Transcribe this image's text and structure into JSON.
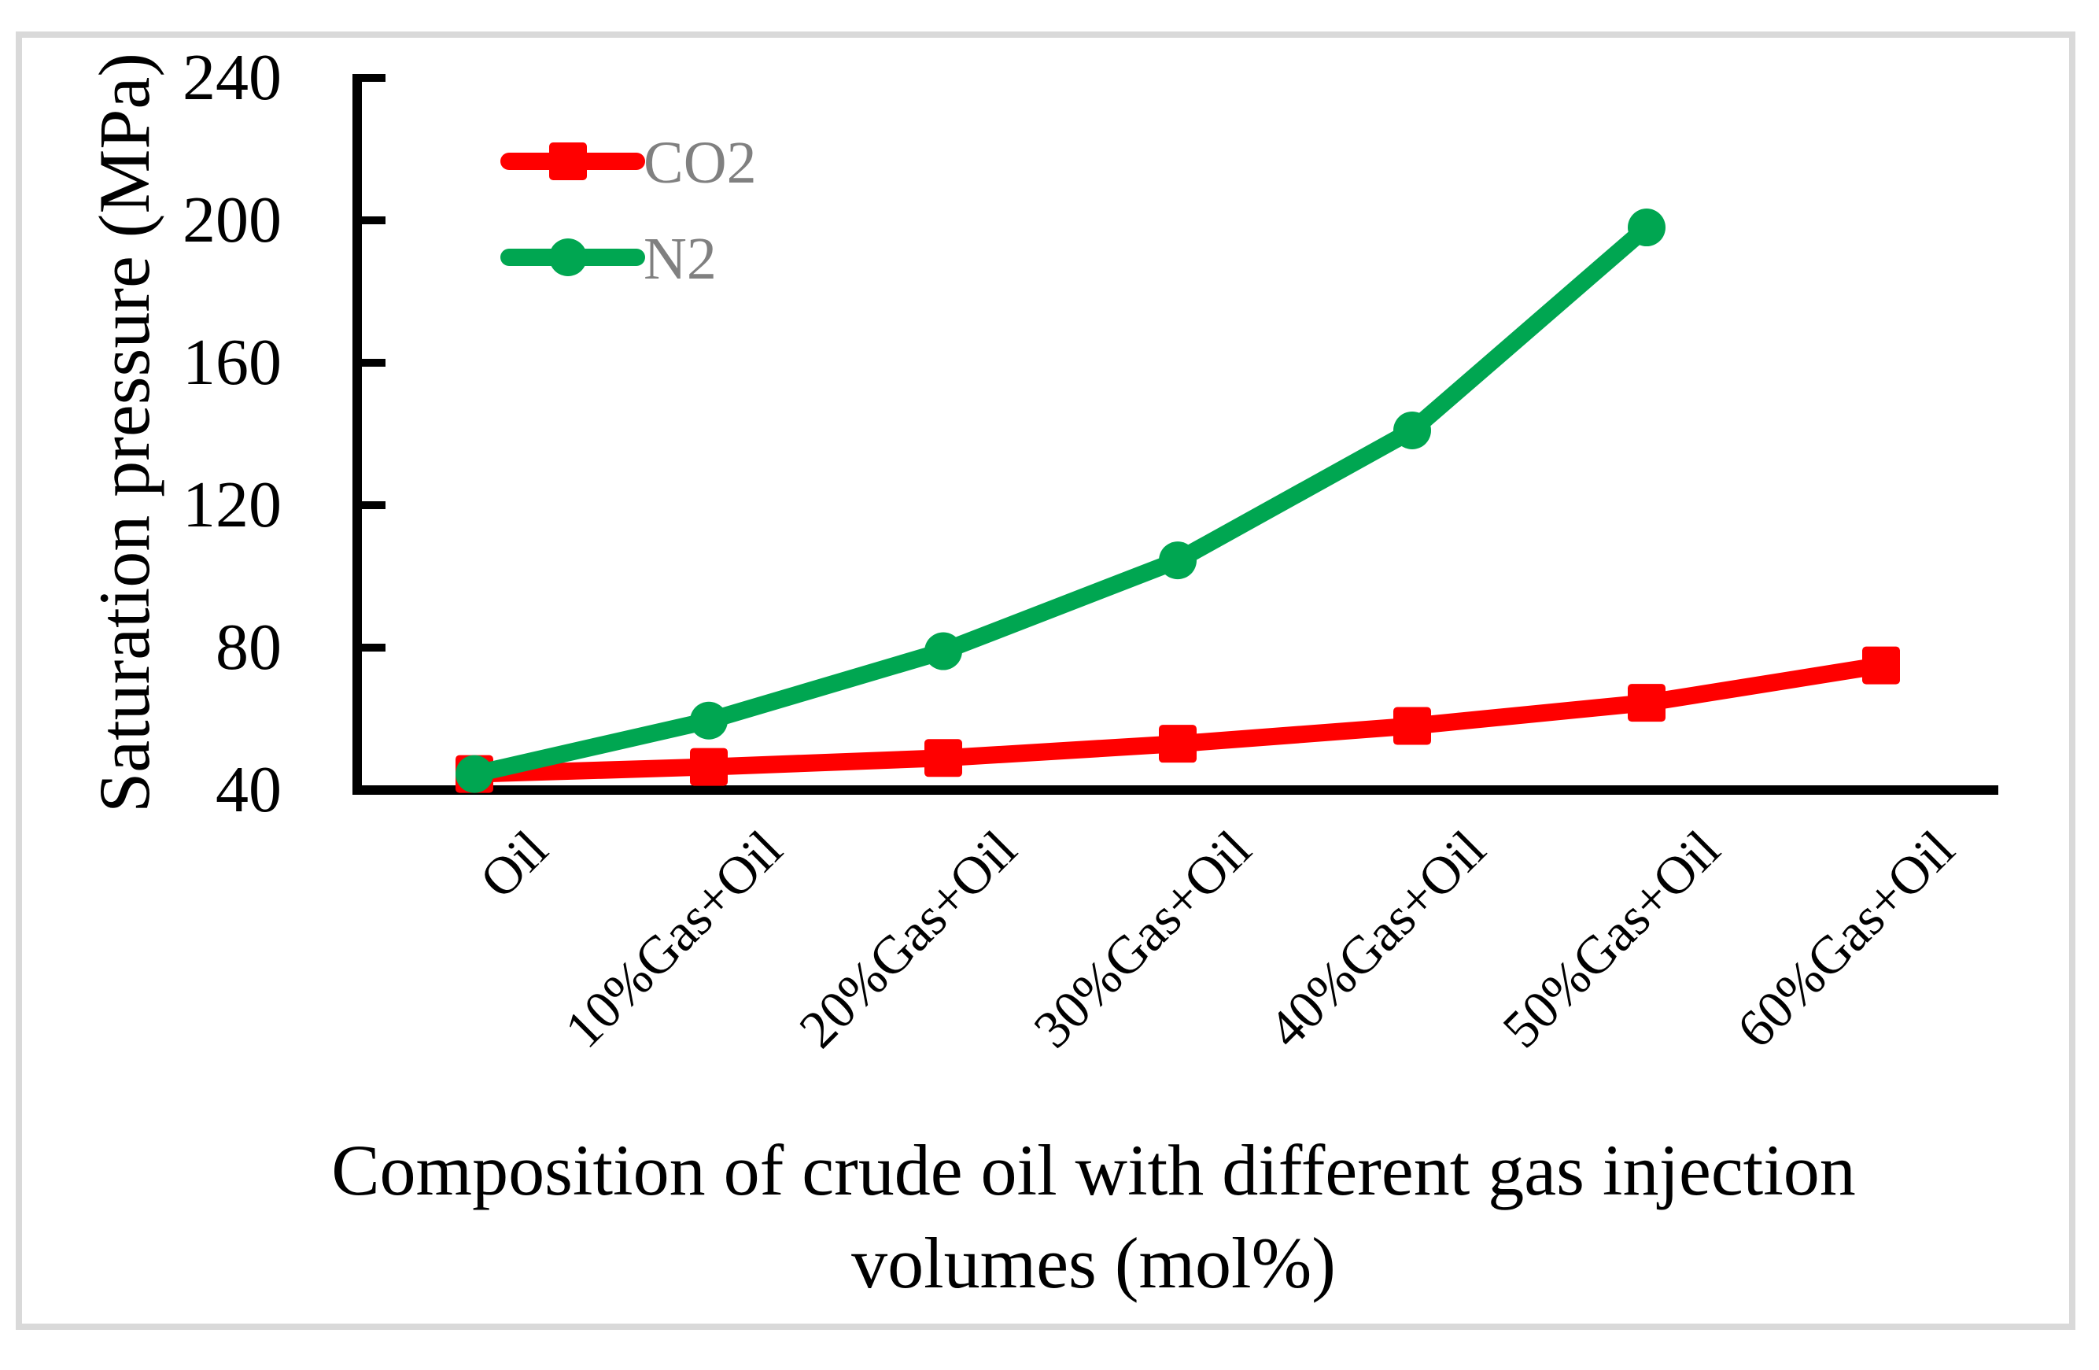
{
  "figure": {
    "background_color": "#FFFFFF",
    "frame_color": "#D9D9D9",
    "axis_color": "#000000",
    "legend_text_color": "#808080"
  },
  "chart_data": {
    "type": "line",
    "title": "",
    "xlabel": "Composition of crude oil with different gas injection volumes (mol%)",
    "xlabel_lines": [
      "Composition of crude oil with different gas injection",
      "volumes (mol%)"
    ],
    "ylabel": "Saturation pressure (MPa)",
    "categories": [
      "Oil",
      "10%Gas+Oil",
      "20%Gas+Oil",
      "30%Gas+Oil",
      "40%Gas+Oil",
      "50%Gas+Oil",
      "60%Gas+Oil"
    ],
    "x_tick_rotation": 45,
    "y_ticks": [
      240,
      200,
      160,
      120,
      80,
      40
    ],
    "ylim": [
      40,
      240
    ],
    "grid": false,
    "legend_position": "upper-left-inside",
    "series": [
      {
        "name": "CO2",
        "color": "#FF0000",
        "marker": "square",
        "values": [
          44.5,
          46.5,
          49,
          53,
          58,
          64.5,
          75
        ]
      },
      {
        "name": "N2",
        "color": "#00A651",
        "marker": "circle",
        "values": [
          44.5,
          59.5,
          79,
          104.5,
          141,
          198
        ]
      }
    ]
  }
}
